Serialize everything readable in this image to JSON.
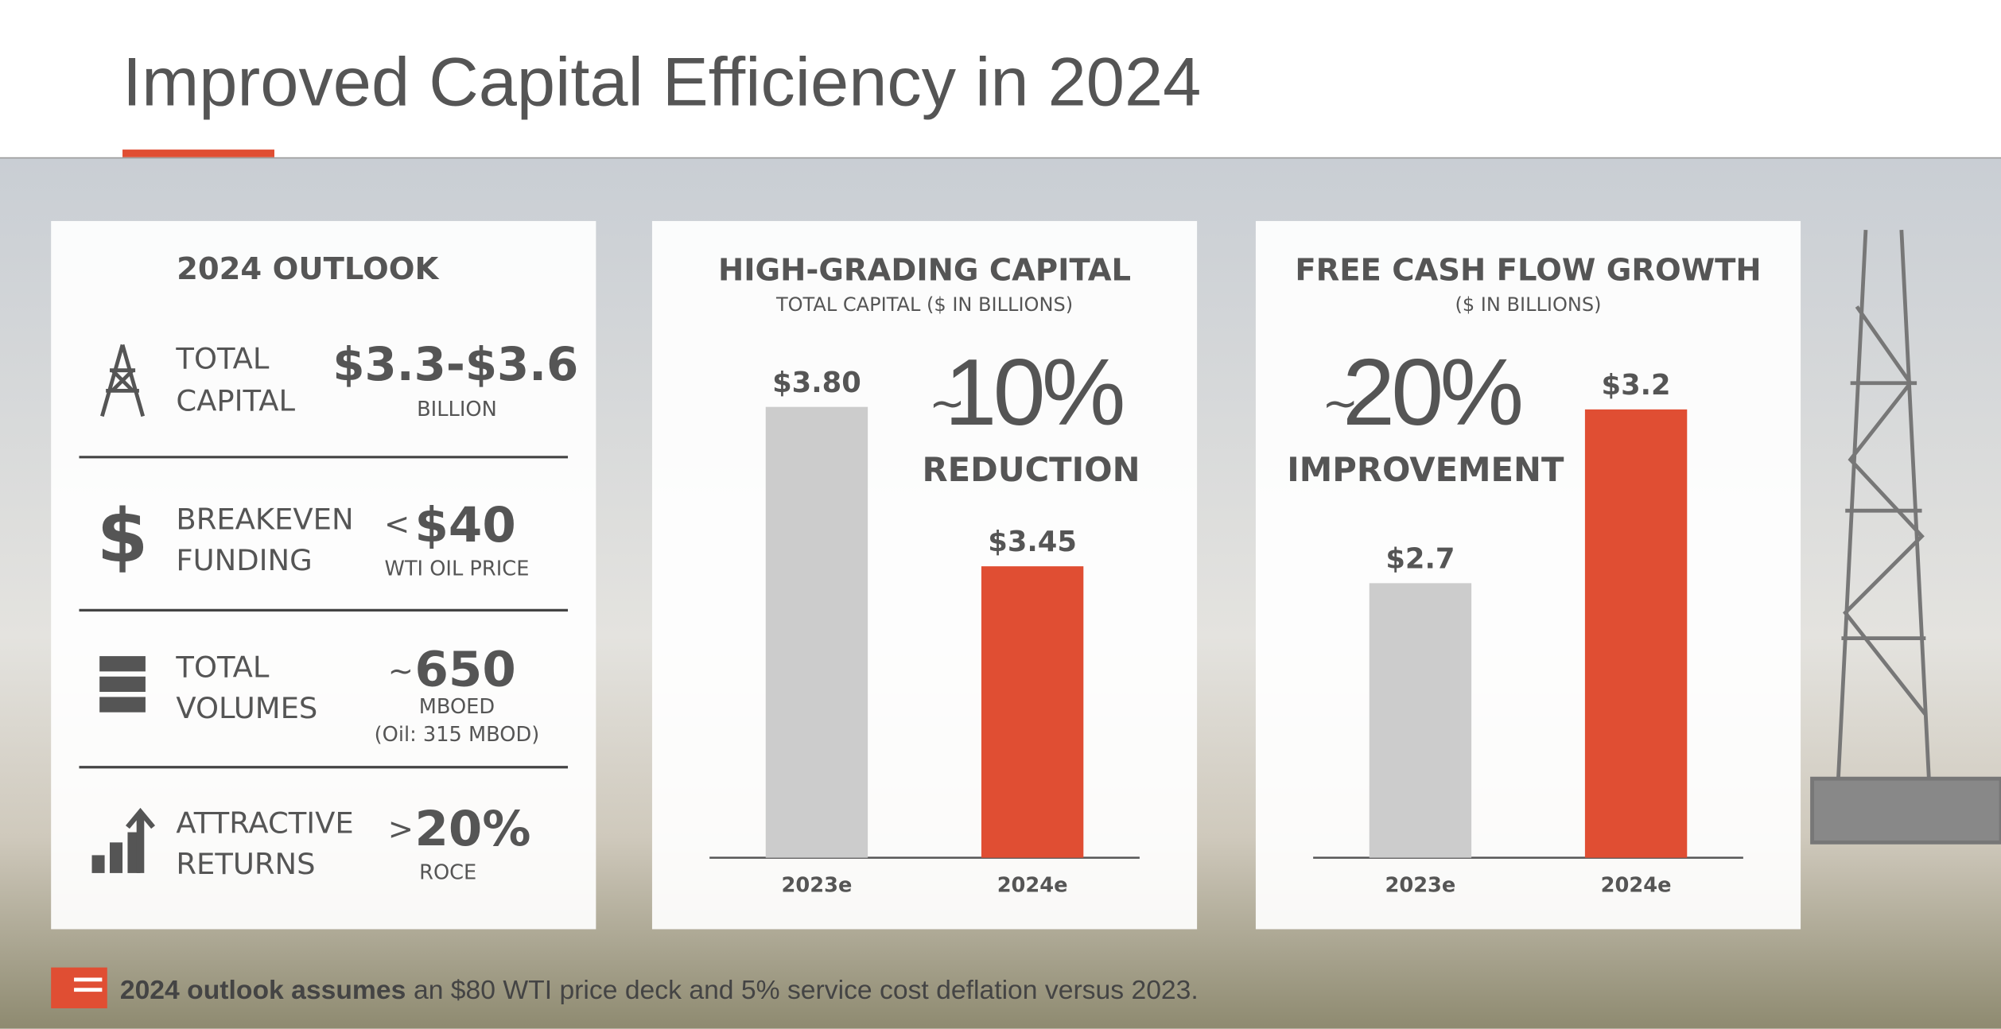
{
  "title": "Improved Capital Efficiency in 2024",
  "outlook": {
    "heading": "2024 OUTLOOK",
    "rows": [
      {
        "label": [
          "TOTAL",
          "CAPITAL"
        ],
        "prefix": null,
        "value": "$3.3-$3.6",
        "unit": "BILLION",
        "note": null
      },
      {
        "label": [
          "BREAKEVEN",
          "FUNDING"
        ],
        "prefix": "<",
        "value": "$40",
        "unit": "WTI OIL PRICE",
        "note": null
      },
      {
        "label": [
          "TOTAL",
          "VOLUMES"
        ],
        "prefix": "~",
        "value": "650",
        "unit": "MBOED",
        "note": "(Oil: 315 MBOD)"
      },
      {
        "label": [
          "ATTRACTIVE",
          "RETURNS"
        ],
        "prefix": ">",
        "value": "20%",
        "unit": "ROCE",
        "note": null
      }
    ]
  },
  "chart_data": [
    {
      "type": "bar",
      "title": "HIGH-GRADING CAPITAL",
      "subtitle": "TOTAL CAPITAL ($ IN BILLIONS)",
      "categories": [
        "2023e",
        "2024e"
      ],
      "values": [
        3.8,
        3.45
      ],
      "value_labels": [
        "$3.80",
        "$3.45"
      ],
      "colors": [
        "#cccccc",
        "#e04e33"
      ],
      "ylim": [
        2.81,
        3.97
      ],
      "annotation": {
        "symbol": "~",
        "value": "10%",
        "label": "REDUCTION"
      }
    },
    {
      "type": "bar",
      "title": "FREE CASH FLOW GROWTH",
      "subtitle": "($ IN BILLIONS)",
      "categories": [
        "2023e",
        "2024e"
      ],
      "values": [
        2.7,
        3.2
      ],
      "value_labels": [
        "$2.7",
        "$3.2"
      ],
      "colors": [
        "#cccccc",
        "#e04e33"
      ],
      "ylim": [
        1.91,
        3.43
      ],
      "annotation": {
        "symbol": "~",
        "value": "20%",
        "label": "IMPROVEMENT"
      }
    }
  ],
  "footnote": {
    "bold": "2024 outlook assumes",
    "text": "an $80 WTI price deck and 5% service cost deflation versus 2023."
  }
}
